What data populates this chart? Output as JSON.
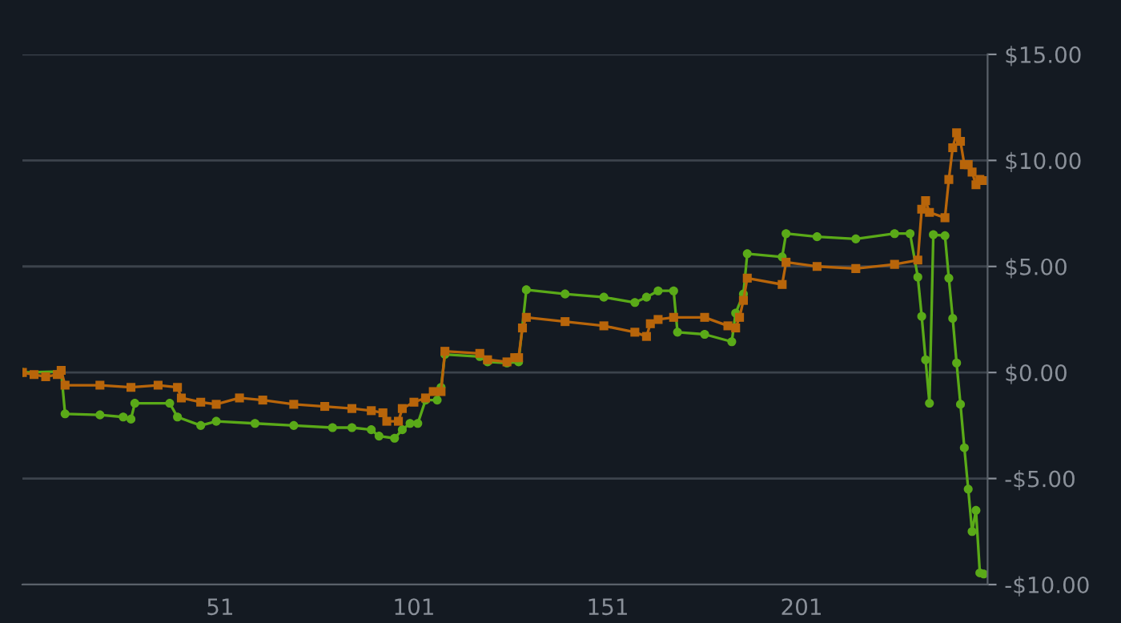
{
  "chart_data": {
    "type": "line",
    "xlim": [
      0,
      249
    ],
    "xticks": [
      51,
      101,
      151,
      201
    ],
    "ylim": [
      -10,
      15
    ],
    "yticks": [
      {
        "value": -10,
        "label": "-$10.00"
      },
      {
        "value": -5,
        "label": "-$5.00"
      },
      {
        "value": 0,
        "label": "$0.00"
      },
      {
        "value": 5,
        "label": "$5.00"
      },
      {
        "value": 10,
        "label": "$10.00"
      },
      {
        "value": 15,
        "label": "$15.00"
      }
    ],
    "grid": "y",
    "line_style": "solid",
    "series": [
      {
        "color": "#5aaa18",
        "marker": "circle",
        "x": [
          0,
          10,
          11,
          20,
          26,
          28,
          29,
          38,
          40,
          46,
          50,
          60,
          70,
          80,
          85,
          90,
          92,
          96,
          98,
          100,
          102,
          104,
          107,
          108,
          109,
          118,
          120,
          125,
          128,
          130,
          140,
          150,
          158,
          161,
          164,
          168,
          169,
          176,
          183,
          184,
          186,
          187,
          196,
          197,
          205,
          215,
          225,
          229,
          231,
          232,
          233,
          234,
          235,
          238,
          239,
          240,
          241,
          242,
          243,
          244,
          245,
          246,
          247,
          248
        ],
        "values": [
          0.0,
          0.05,
          -1.95,
          -2.0,
          -2.1,
          -2.2,
          -1.45,
          -1.45,
          -2.1,
          -2.5,
          -2.3,
          -2.4,
          -2.5,
          -2.6,
          -2.6,
          -2.7,
          -3.0,
          -3.1,
          -2.7,
          -2.4,
          -2.4,
          -1.3,
          -1.3,
          -0.7,
          0.85,
          0.75,
          0.5,
          0.45,
          0.5,
          3.9,
          3.7,
          3.55,
          3.3,
          3.55,
          3.85,
          3.85,
          1.9,
          1.8,
          1.45,
          2.8,
          3.7,
          5.6,
          5.45,
          6.55,
          6.4,
          6.3,
          6.55,
          6.55,
          4.5,
          2.65,
          0.6,
          -1.45,
          6.5,
          6.45,
          4.45,
          2.55,
          0.45,
          -1.5,
          -3.55,
          -5.5,
          -7.5,
          -6.5,
          -9.45,
          -9.5
        ]
      },
      {
        "color": "#b8650a",
        "marker": "square",
        "x": [
          0,
          3,
          6,
          9,
          10,
          11,
          20,
          28,
          35,
          40,
          41,
          46,
          50,
          56,
          62,
          70,
          78,
          85,
          90,
          93,
          94,
          97,
          98,
          101,
          104,
          106,
          108,
          109,
          118,
          120,
          125,
          127,
          128,
          129,
          130,
          140,
          150,
          158,
          161,
          162,
          164,
          168,
          176,
          182,
          184,
          185,
          186,
          187,
          196,
          197,
          205,
          215,
          225,
          231,
          232,
          233,
          234,
          238,
          239,
          240,
          241,
          242,
          243,
          244,
          245,
          246,
          247,
          248
        ],
        "values": [
          0.0,
          -0.1,
          -0.2,
          -0.1,
          0.1,
          -0.6,
          -0.6,
          -0.7,
          -0.6,
          -0.7,
          -1.2,
          -1.4,
          -1.5,
          -1.2,
          -1.3,
          -1.5,
          -1.6,
          -1.7,
          -1.8,
          -1.9,
          -2.3,
          -2.3,
          -1.7,
          -1.4,
          -1.2,
          -0.9,
          -0.9,
          1.0,
          0.9,
          0.6,
          0.5,
          0.7,
          0.7,
          2.1,
          2.6,
          2.4,
          2.2,
          1.9,
          1.7,
          2.3,
          2.5,
          2.6,
          2.6,
          2.2,
          2.1,
          2.6,
          3.4,
          4.45,
          4.15,
          5.2,
          5.0,
          4.9,
          5.1,
          5.3,
          7.7,
          8.1,
          7.55,
          7.3,
          9.1,
          10.6,
          11.3,
          10.9,
          9.8,
          9.8,
          9.45,
          8.85,
          9.1,
          9.05
        ]
      }
    ]
  }
}
